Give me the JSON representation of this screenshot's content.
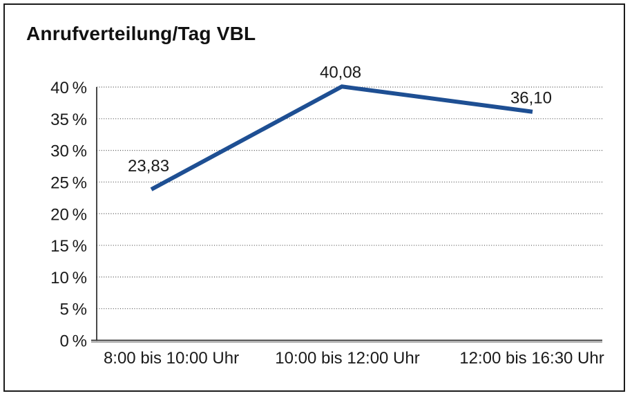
{
  "window": {
    "background": "#ffffff",
    "border_color": "#1a1a1a"
  },
  "chart_data": {
    "type": "line",
    "title": "Anrufverteilung/Tag VBL",
    "categories": [
      "8:00 bis 10:00 Uhr",
      "10:00 bis 12:00 Uhr",
      "12:00 bis 16:30 Uhr"
    ],
    "series": [
      {
        "values": [
          23.83,
          40.08,
          36.1
        ],
        "point_labels": [
          "23,83",
          "40,08",
          "36,10"
        ],
        "color": "#1e4f93"
      }
    ],
    "xlabel": "",
    "ylabel": "",
    "ylim": [
      0,
      40
    ],
    "y_ticks": [
      {
        "value": 0,
        "label": "0 %"
      },
      {
        "value": 5,
        "label": "5 %"
      },
      {
        "value": 10,
        "label": "10 %"
      },
      {
        "value": 15,
        "label": "15 %"
      },
      {
        "value": 20,
        "label": "20 %"
      },
      {
        "value": 25,
        "label": "25 %"
      },
      {
        "value": 30,
        "label": "30 %"
      },
      {
        "value": 35,
        "label": "35 %"
      },
      {
        "value": 40,
        "label": "40 %"
      }
    ],
    "grid": "horizontal-dotted",
    "legend": "none",
    "text_color": "#1a1a1a"
  }
}
